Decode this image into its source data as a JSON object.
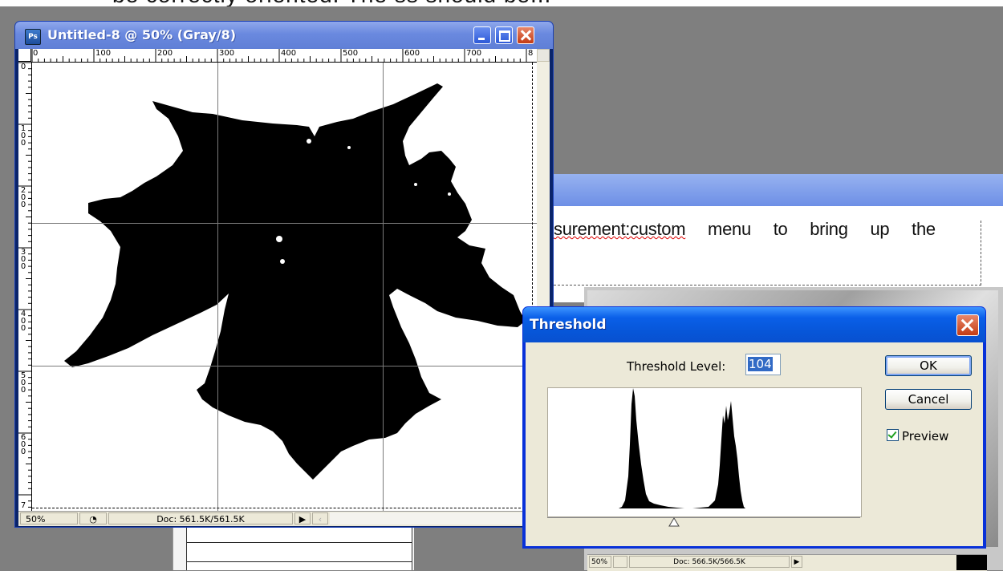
{
  "top_doc": {
    "text": "be correctly oriented. The ss should be..."
  },
  "background_doc": {
    "lead": "surement:custom",
    "rest": "menu to bring up the"
  },
  "photoshop_window": {
    "title": "Untitled-8 @ 50% (Gray/8)",
    "app_icon": "ps-icon",
    "app_icon_text": "Ps",
    "ruler_top": [
      "0",
      "100",
      "200",
      "300",
      "400",
      "500",
      "600",
      "700",
      "8"
    ],
    "ruler_left": [
      "0",
      "100",
      "200",
      "300",
      "400",
      "500",
      "600",
      "7"
    ],
    "status": {
      "zoom": "50%",
      "doc": "Doc: 561.5K/561.5K"
    }
  },
  "second_window": {
    "status": {
      "zoom": "50%",
      "doc": "Doc: 566.5K/566.5K"
    }
  },
  "threshold_dialog": {
    "title": "Threshold",
    "level_label": "Threshold Level:",
    "level_value": "104",
    "ok_label": "OK",
    "cancel_label": "Cancel",
    "preview_label": "Preview",
    "preview_checked": true,
    "histogram_peak_colors": {
      "fill": "#000000",
      "bg": "#ffffff"
    },
    "slider_level": 104
  },
  "colors": {
    "xp_title_blue": "#0a5fe8",
    "ps_title_blue": "#6a89df",
    "dialog_face": "#ece9d8",
    "desktop_gray": "#7f7f7f"
  }
}
